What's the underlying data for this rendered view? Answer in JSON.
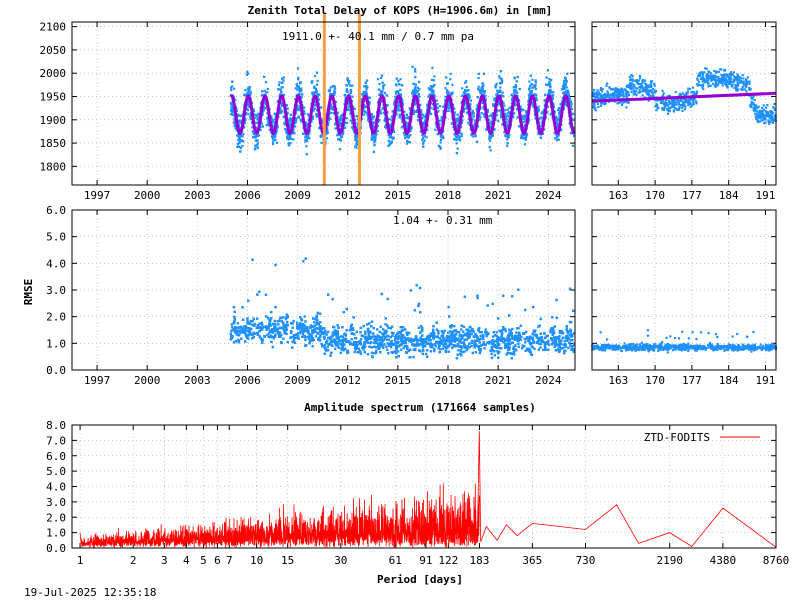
{
  "title": "Zenith Total Delay of KOPS (H=1906.6m) in [mm]",
  "footer_timestamp": "19-Jul-2025 12:35:18",
  "colors": {
    "points": "#1e90ff",
    "fit": "#9400d3",
    "markers": "#f4a040",
    "spectrum": "#ff0000"
  },
  "chart_data": [
    {
      "id": "ztd",
      "type": "scatter",
      "title": "Zenith Total Delay of KOPS (H=1906.6m) in [mm]",
      "annotation": "1911.0 +-  40.1 mm /  0.7 mm pa",
      "xlim": [
        1995.5,
        2025.6
      ],
      "ylim": [
        1760,
        2110
      ],
      "yticks": [
        "1800",
        "1850",
        "1900",
        "1950",
        "2000",
        "2050",
        "2100"
      ],
      "xticks": [
        "1997",
        "2000",
        "2003",
        "2006",
        "2009",
        "2012",
        "2015",
        "2018",
        "2021",
        "2024"
      ],
      "grid": true,
      "series": [
        {
          "kind": "points",
          "data_start": 2005.0,
          "data_end": 2025.55,
          "mean": 1911.0,
          "seasonal_amplitude": 40.1,
          "trend_mm_per_year": 0.7
        },
        {
          "kind": "fit",
          "mean": 1911.0,
          "seasonal_amplitude": 40.1
        }
      ],
      "vertical_markers": [
        2010.6,
        2012.7
      ]
    },
    {
      "id": "ztd-recent",
      "type": "scatter",
      "xlim": [
        158,
        193
      ],
      "ylim": [
        1760,
        2110
      ],
      "xticks": [
        "163",
        "170",
        "177",
        "184",
        "191"
      ],
      "grid": true,
      "trend_line": {
        "start": 1940,
        "end": 1957
      }
    },
    {
      "id": "rmse",
      "type": "scatter",
      "ylabel": "RMSE",
      "annotation": "1.04 +-  0.31 mm",
      "xlim": [
        1995.5,
        2025.6
      ],
      "ylim": [
        0,
        6
      ],
      "yticks": [
        "0.0",
        "1.0",
        "2.0",
        "3.0",
        "4.0",
        "5.0",
        "6.0"
      ],
      "xticks": [
        "1997",
        "2000",
        "2003",
        "2006",
        "2009",
        "2012",
        "2015",
        "2018",
        "2021",
        "2024"
      ],
      "grid": true,
      "series": [
        {
          "kind": "points",
          "data_start": 2005.0,
          "data_end": 2025.55,
          "mean_early": 1.4,
          "mean_late": 1.04,
          "step_year": 2010.6
        }
      ]
    },
    {
      "id": "rmse-recent",
      "type": "scatter",
      "xlim": [
        158,
        193
      ],
      "ylim": [
        0,
        6
      ],
      "xticks": [
        "163",
        "170",
        "177",
        "184",
        "191"
      ],
      "grid": true,
      "level": 0.85
    },
    {
      "id": "spectrum",
      "type": "line",
      "title": "Amplitude spectrum (171664 samples)",
      "xlabel": "Period [days]",
      "xscale": "log",
      "xlim": [
        0.9,
        8760
      ],
      "ylim": [
        0,
        8
      ],
      "yticks": [
        "0.0",
        "1.0",
        "2.0",
        "3.0",
        "4.0",
        "5.0",
        "6.0",
        "7.0",
        "8.0"
      ],
      "xticks": [
        "1",
        "2",
        "3",
        "4",
        "5",
        "6",
        "7",
        "10",
        "15",
        "30",
        "61",
        "91",
        "122",
        "183",
        "365",
        "730",
        "2190",
        "4380",
        "8760"
      ],
      "grid": true,
      "legend": "ZTD-FODITS",
      "legend_position": "top-right",
      "peaks": [
        {
          "period": 1,
          "amplitude": 1.0
        },
        {
          "period": 182.6,
          "amplitude": 7.6
        },
        {
          "period": 365,
          "amplitude": 1.6
        },
        {
          "period": 730,
          "amplitude": 1.2
        },
        {
          "period": 1095,
          "amplitude": 2.8
        },
        {
          "period": 1460,
          "amplitude": 0.3
        },
        {
          "period": 2190,
          "amplitude": 1.0
        },
        {
          "period": 2920,
          "amplitude": 0.1
        },
        {
          "period": 4380,
          "amplitude": 2.6
        },
        {
          "period": 8760,
          "amplitude": 0.05
        }
      ]
    }
  ]
}
